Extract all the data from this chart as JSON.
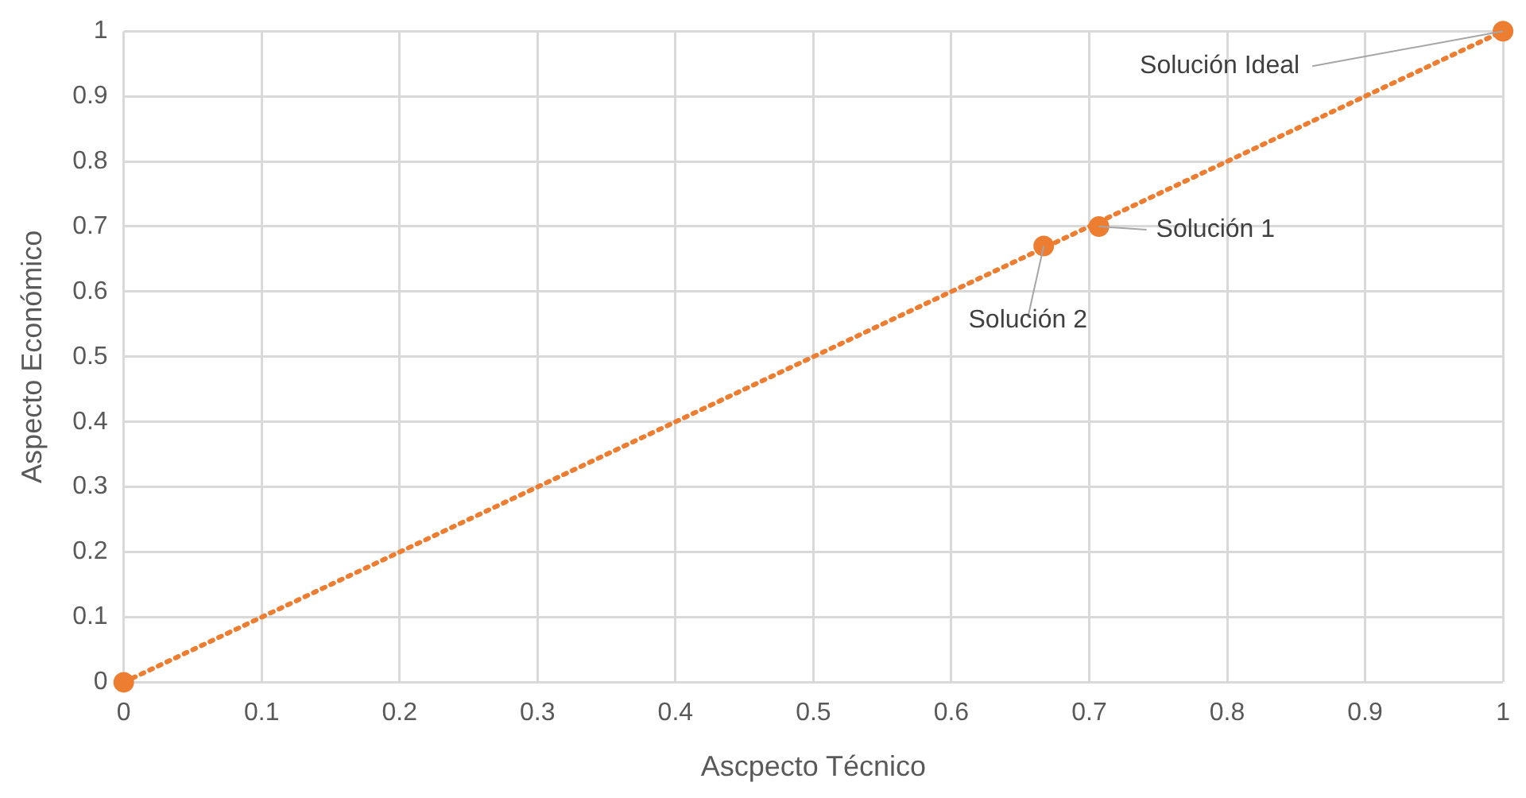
{
  "chart_data": {
    "type": "scatter",
    "xlabel": "Ascpecto Técnico",
    "ylabel": "Aspecto Económico",
    "series": [
      {
        "color": "#ed7d31",
        "x": [
          0,
          0.667,
          0.707,
          1
        ],
        "values": [
          0,
          0.67,
          0.7,
          1
        ],
        "marker": "circle"
      },
      {
        "type": "line",
        "color": "#ed7d31",
        "x": [
          0,
          1
        ],
        "values": [
          0,
          1
        ],
        "marker": "none",
        "line_style": "dotted"
      }
    ],
    "xlim": [
      0,
      1
    ],
    "xticks": [
      0,
      0.1,
      0.2,
      0.3,
      0.4,
      0.5,
      0.6,
      0.7,
      0.8,
      0.9,
      1
    ],
    "ylim": [
      0,
      1
    ],
    "yticks": [
      0,
      0.1,
      0.2,
      0.3,
      0.4,
      0.5,
      0.6,
      0.7,
      0.8,
      0.9,
      1
    ],
    "grid": true,
    "legend": false,
    "annotations": [
      {
        "text": "Solución Ideal",
        "x": 1,
        "y": 1
      },
      {
        "text": "Solución 1",
        "x": 0.707,
        "y": 0.7
      },
      {
        "text": "Solución 2",
        "x": 0.667,
        "y": 0.67
      }
    ]
  }
}
